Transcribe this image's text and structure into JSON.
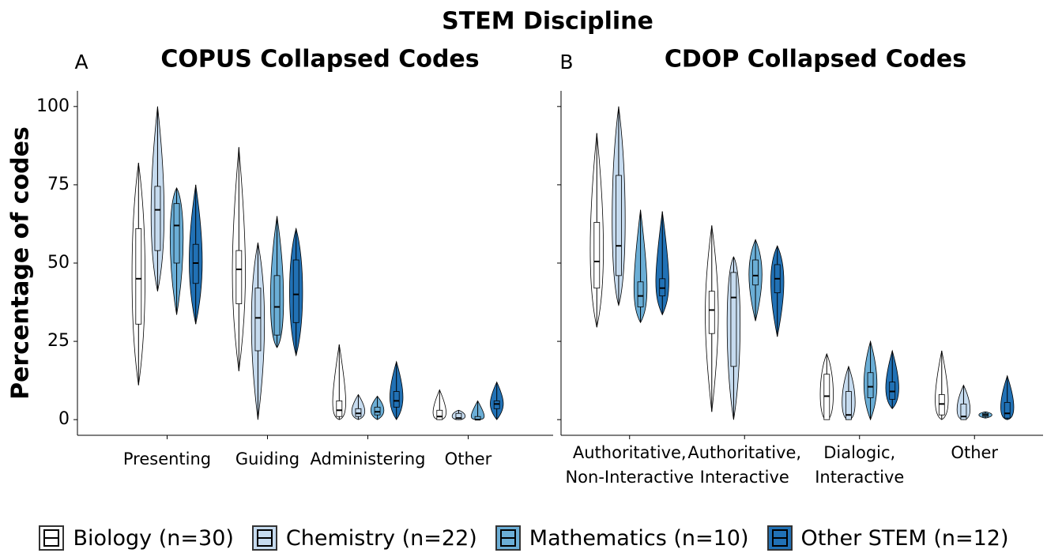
{
  "title": "STEM Discipline",
  "chart_data": [
    {
      "type": "violin",
      "panel_label": "A",
      "title": "COPUS Collapsed Codes",
      "y_label": "Percentage of codes",
      "categories": [
        "Presenting",
        "Guiding",
        "Administering",
        "Other"
      ],
      "ylim": [
        -5,
        105
      ],
      "yticks": [
        0,
        25,
        50,
        75,
        100
      ],
      "series": [
        {
          "name": "Biology (n=30)",
          "color": "#ffffff",
          "values": [
            {
              "min": 11,
              "q1": 30.5,
              "median": 45,
              "q3": 61,
              "max": 82
            },
            {
              "min": 15.5,
              "q1": 37,
              "median": 48,
              "q3": 54,
              "max": 87
            },
            {
              "min": 0,
              "q1": 1,
              "median": 3,
              "q3": 6,
              "max": 24
            },
            {
              "min": 0,
              "q1": 0,
              "median": 1,
              "q3": 3,
              "max": 9.5
            }
          ]
        },
        {
          "name": "Chemistry (n=22)",
          "color": "#c6dbef",
          "values": [
            {
              "min": 41,
              "q1": 54,
              "median": 67,
              "q3": 74.5,
              "max": 100
            },
            {
              "min": 0,
              "q1": 22,
              "median": 32.5,
              "q3": 42,
              "max": 56.5
            },
            {
              "min": 0,
              "q1": 1,
              "median": 2,
              "q3": 3.5,
              "max": 8
            },
            {
              "min": 0,
              "q1": 0,
              "median": 0.5,
              "q3": 2,
              "max": 3
            }
          ]
        },
        {
          "name": "Mathematics (n=10)",
          "color": "#6baed6",
          "values": [
            {
              "min": 33.5,
              "q1": 50,
              "median": 62,
              "q3": 69,
              "max": 74
            },
            {
              "min": 23,
              "q1": 27,
              "median": 36,
              "q3": 46,
              "max": 65
            },
            {
              "min": 0,
              "q1": 1.5,
              "median": 2.5,
              "q3": 4,
              "max": 7.5
            },
            {
              "min": 0,
              "q1": 0,
              "median": 0,
              "q3": 1,
              "max": 6
            }
          ]
        },
        {
          "name": "Other STEM (n=12)",
          "color": "#2171b5",
          "values": [
            {
              "min": 30.5,
              "q1": 43.5,
              "median": 50,
              "q3": 56,
              "max": 75
            },
            {
              "min": 20.5,
              "q1": 31,
              "median": 40,
              "q3": 51,
              "max": 61
            },
            {
              "min": 0,
              "q1": 4,
              "median": 6,
              "q3": 9,
              "max": 18.5
            },
            {
              "min": 0,
              "q1": 3.5,
              "median": 5,
              "q3": 6,
              "max": 12
            }
          ]
        }
      ]
    },
    {
      "type": "violin",
      "panel_label": "B",
      "title": "CDOP Collapsed Codes",
      "categories": [
        "Authoritative,\nNon-Interactive",
        "Authoritative,\nInteractive",
        "Dialogic,\nInteractive",
        "Other"
      ],
      "ylim": [
        -5,
        105
      ],
      "yticks": [
        0,
        25,
        50,
        75,
        100
      ],
      "series": [
        {
          "name": "Biology (n=30)",
          "color": "#ffffff",
          "values": [
            {
              "min": 29.5,
              "q1": 42,
              "median": 50.5,
              "q3": 63,
              "max": 91.5
            },
            {
              "min": 2.5,
              "q1": 27.5,
              "median": 35,
              "q3": 41,
              "max": 62
            },
            {
              "min": 0,
              "q1": 0,
              "median": 7.5,
              "q3": 14.5,
              "max": 21
            },
            {
              "min": 0,
              "q1": 1.5,
              "median": 5,
              "q3": 8,
              "max": 22
            }
          ]
        },
        {
          "name": "Chemistry (n=22)",
          "color": "#c6dbef",
          "values": [
            {
              "min": 36.5,
              "q1": 46,
              "median": 55.5,
              "q3": 78,
              "max": 100
            },
            {
              "min": 0,
              "q1": 17,
              "median": 39,
              "q3": 47,
              "max": 52
            },
            {
              "min": 0,
              "q1": 0,
              "median": 1.5,
              "q3": 9,
              "max": 17
            },
            {
              "min": 0,
              "q1": 0,
              "median": 1,
              "q3": 5,
              "max": 11
            }
          ]
        },
        {
          "name": "Mathematics (n=10)",
          "color": "#6baed6",
          "values": [
            {
              "min": 31,
              "q1": 36,
              "median": 39.5,
              "q3": 44,
              "max": 67
            },
            {
              "min": 31.5,
              "q1": 43,
              "median": 46,
              "q3": 51,
              "max": 57.5
            },
            {
              "min": 0,
              "q1": 7,
              "median": 10.5,
              "q3": 15,
              "max": 25
            },
            {
              "min": 0.5,
              "q1": 1,
              "median": 1.5,
              "q3": 2,
              "max": 2.5
            }
          ]
        },
        {
          "name": "Other STEM (n=12)",
          "color": "#2171b5",
          "values": [
            {
              "min": 33.5,
              "q1": 39.5,
              "median": 42,
              "q3": 45,
              "max": 66.5
            },
            {
              "min": 26.5,
              "q1": 40.5,
              "median": 45,
              "q3": 49.5,
              "max": 55.5
            },
            {
              "min": 3.5,
              "q1": 6.5,
              "median": 9,
              "q3": 12,
              "max": 22
            },
            {
              "min": 0,
              "q1": 0.5,
              "median": 2,
              "q3": 5.5,
              "max": 14
            }
          ]
        }
      ]
    }
  ]
}
